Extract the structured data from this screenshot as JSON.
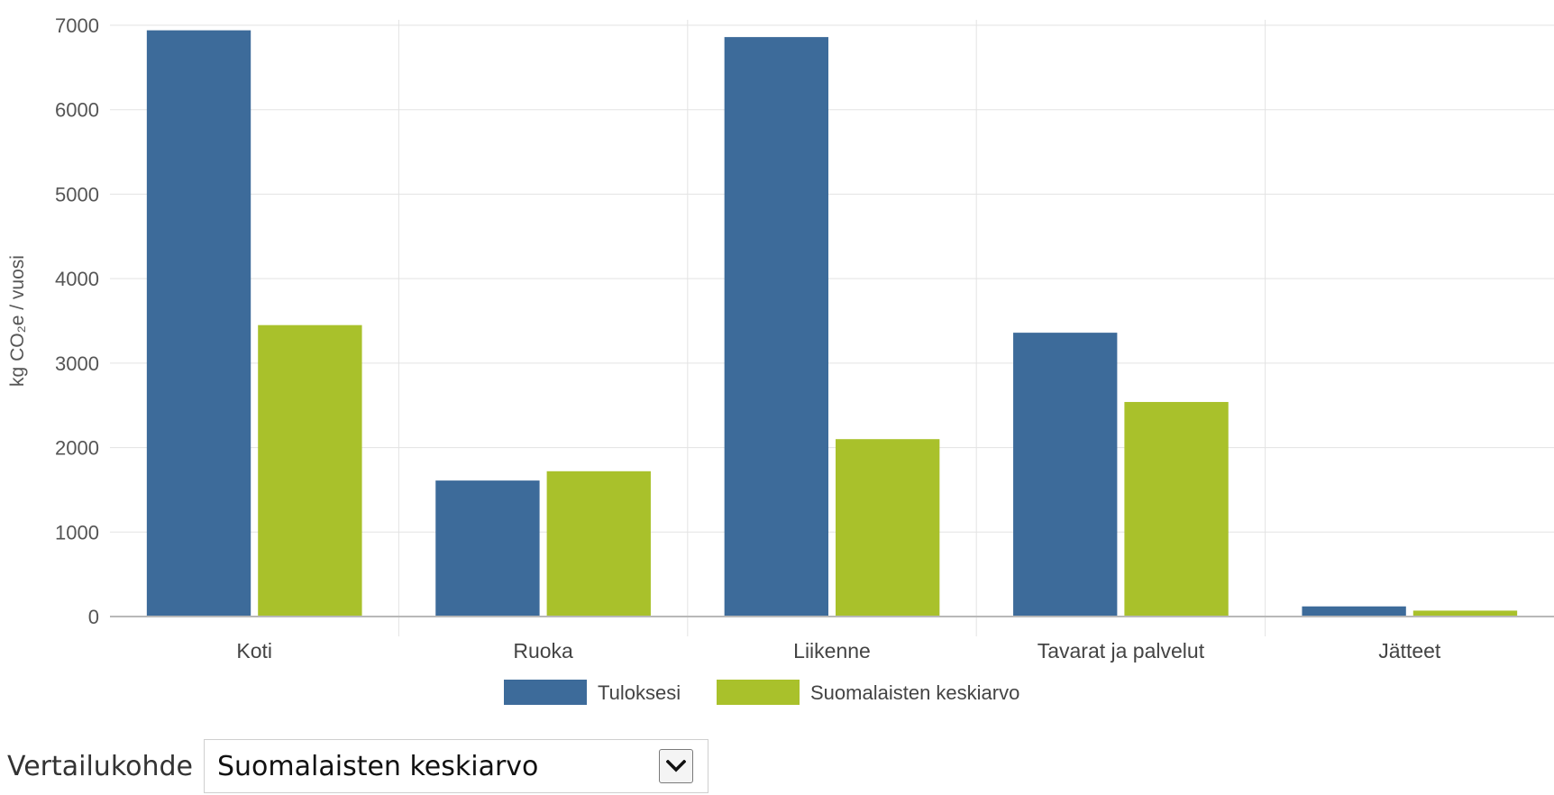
{
  "chart_data": {
    "type": "bar",
    "title": "",
    "xlabel": "",
    "ylabel": "kg CO₂e / vuosi",
    "ylim": [
      0,
      7000
    ],
    "yticks": [
      0,
      1000,
      2000,
      3000,
      4000,
      5000,
      6000,
      7000
    ],
    "grid": true,
    "legend_position": "bottom-center",
    "categories": [
      "Koti",
      "Ruoka",
      "Liikenne",
      "Tavarat ja palvelut",
      "Jätteet"
    ],
    "series": [
      {
        "name": "Tuloksesi",
        "color": "#3d6b9a",
        "values": [
          6940,
          1610,
          6860,
          3360,
          120
        ]
      },
      {
        "name": "Suomalaisten keskiarvo",
        "color": "#a9c12b",
        "values": [
          3450,
          1720,
          2100,
          2540,
          70
        ]
      }
    ]
  },
  "comparison": {
    "label": "Vertailukohde",
    "selected": "Suomalaisten keskiarvo",
    "arrow_icon": "chevron-down-icon"
  }
}
